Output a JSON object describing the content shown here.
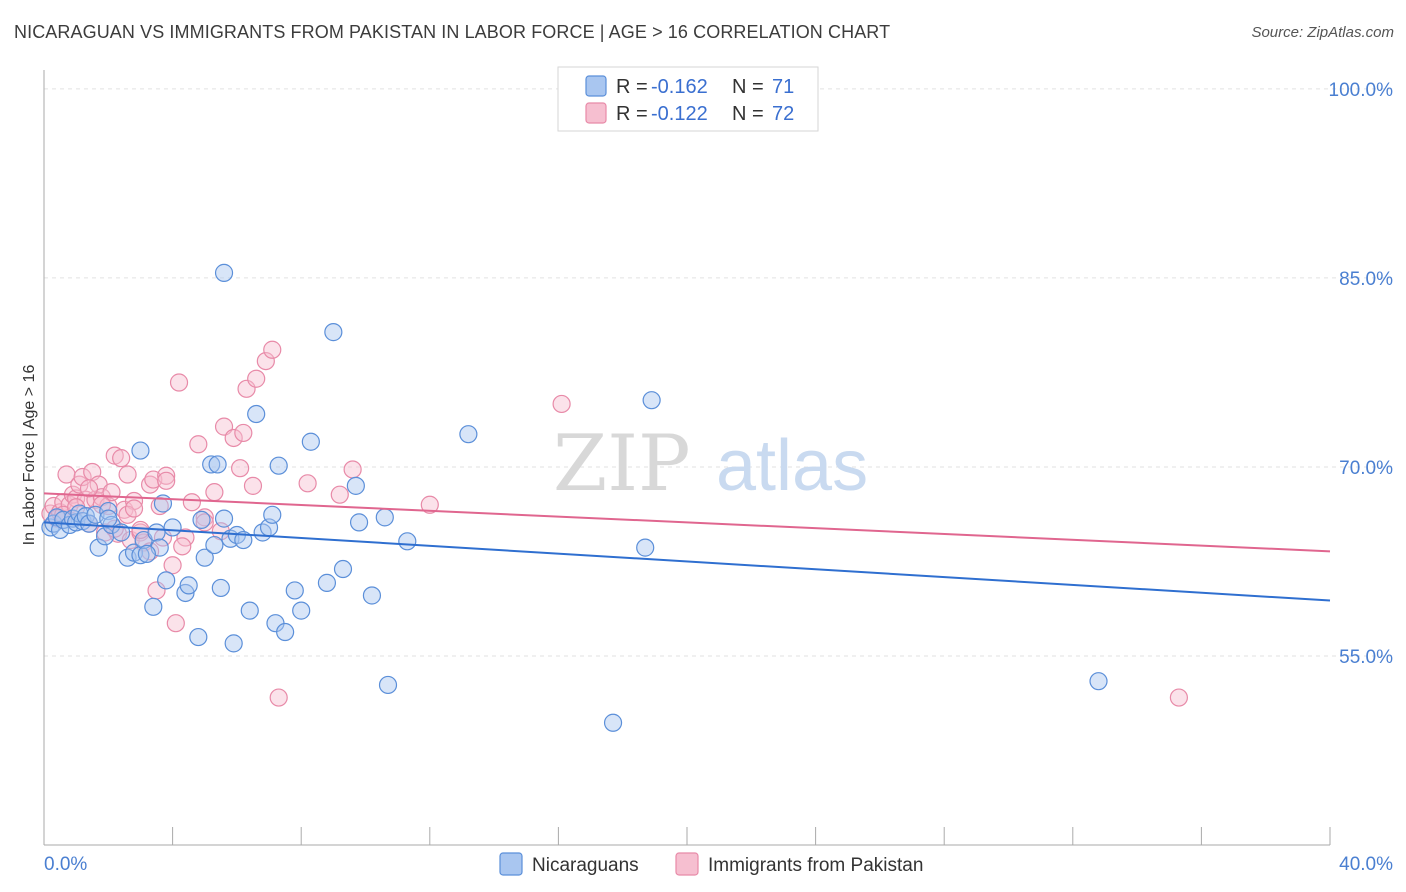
{
  "title": "NICARAGUAN VS IMMIGRANTS FROM PAKISTAN IN LABOR FORCE | AGE > 16 CORRELATION CHART",
  "source": "Source: ZipAtlas.com",
  "watermark": {
    "zip": "ZIP",
    "atlas": "atlas"
  },
  "colors": {
    "blue_fill": "#a9c6f0",
    "blue_stroke": "#5b8fd9",
    "blue_line": "#2f6fd0",
    "pink_fill": "#f6bfd0",
    "pink_stroke": "#e88aa8",
    "pink_line": "#e0668f",
    "tick_text": "#4a7fd1",
    "grid": "#e2e2e2"
  },
  "legend": {
    "rows": [
      {
        "r_label": "R = ",
        "r_value": "-0.162",
        "n_label": "N = ",
        "n_value": "71"
      },
      {
        "r_label": "R = ",
        "r_value": "-0.122",
        "n_label": "N = ",
        "n_value": "72"
      }
    ]
  },
  "bottom_legend": [
    "Nicaraguans",
    "Immigrants from Pakistan"
  ],
  "chart_data": {
    "type": "scatter",
    "xlabel": "",
    "ylabel": "In Labor Force | Age > 16",
    "xlim": [
      0,
      40
    ],
    "ylim": [
      40,
      101.5
    ],
    "x_tick_labels": [
      "0.0%",
      "40.0%"
    ],
    "y_ticks": [
      55,
      70,
      85,
      100
    ],
    "y_tick_labels": [
      "55.0%",
      "70.0%",
      "85.0%",
      "100.0%"
    ],
    "series": [
      {
        "name": "Nicaraguans",
        "r": -0.162,
        "n": 71,
        "trend": {
          "x": [
            0,
            40
          ],
          "y": [
            65.6,
            59.4
          ]
        },
        "points": [
          [
            0.2,
            65.2
          ],
          [
            0.3,
            65.5
          ],
          [
            0.4,
            66.0
          ],
          [
            0.5,
            65.0
          ],
          [
            0.6,
            65.8
          ],
          [
            0.8,
            65.4
          ],
          [
            0.9,
            65.9
          ],
          [
            1.0,
            65.6
          ],
          [
            1.1,
            66.3
          ],
          [
            1.2,
            65.7
          ],
          [
            1.3,
            66.1
          ],
          [
            1.4,
            65.5
          ],
          [
            1.6,
            66.2
          ],
          [
            1.7,
            63.6
          ],
          [
            1.9,
            64.5
          ],
          [
            2.0,
            66.5
          ],
          [
            2.1,
            65.4
          ],
          [
            2.4,
            64.8
          ],
          [
            2.6,
            62.8
          ],
          [
            2.8,
            63.2
          ],
          [
            3.0,
            63.0
          ],
          [
            3.1,
            64.2
          ],
          [
            3.4,
            58.9
          ],
          [
            3.5,
            64.8
          ],
          [
            3.6,
            63.6
          ],
          [
            3.7,
            67.1
          ],
          [
            3.8,
            61.0
          ],
          [
            4.0,
            65.2
          ],
          [
            4.4,
            60.0
          ],
          [
            4.5,
            60.6
          ],
          [
            4.8,
            56.5
          ],
          [
            4.9,
            65.8
          ],
          [
            5.0,
            62.8
          ],
          [
            5.2,
            70.2
          ],
          [
            5.3,
            63.8
          ],
          [
            5.5,
            60.4
          ],
          [
            5.6,
            65.9
          ],
          [
            5.8,
            64.3
          ],
          [
            5.9,
            56.0
          ],
          [
            6.0,
            64.6
          ],
          [
            6.2,
            64.2
          ],
          [
            6.4,
            58.6
          ],
          [
            6.6,
            74.2
          ],
          [
            6.8,
            64.8
          ],
          [
            7.0,
            65.2
          ],
          [
            7.1,
            66.2
          ],
          [
            7.2,
            57.6
          ],
          [
            7.3,
            70.1
          ],
          [
            7.5,
            56.9
          ],
          [
            7.8,
            60.2
          ],
          [
            8.0,
            58.6
          ],
          [
            8.3,
            72.0
          ],
          [
            8.8,
            60.8
          ],
          [
            9.0,
            80.7
          ],
          [
            9.3,
            61.9
          ],
          [
            9.7,
            68.5
          ],
          [
            9.8,
            65.6
          ],
          [
            10.2,
            59.8
          ],
          [
            10.6,
            66.0
          ],
          [
            10.7,
            52.7
          ],
          [
            11.3,
            64.1
          ],
          [
            13.2,
            72.6
          ],
          [
            17.7,
            49.7
          ],
          [
            18.7,
            63.6
          ],
          [
            18.9,
            75.3
          ],
          [
            32.8,
            53.0
          ],
          [
            2.0,
            65.9
          ],
          [
            3.0,
            71.3
          ],
          [
            5.4,
            70.2
          ],
          [
            5.6,
            85.4
          ],
          [
            3.2,
            63.1
          ]
        ]
      },
      {
        "name": "Immigrants from Pakistan",
        "r": -0.122,
        "n": 72,
        "trend": {
          "x": [
            0,
            40
          ],
          "y": [
            67.9,
            63.3
          ]
        },
        "points": [
          [
            0.2,
            66.3
          ],
          [
            0.3,
            66.9
          ],
          [
            0.4,
            65.9
          ],
          [
            0.5,
            66.4
          ],
          [
            0.6,
            67.2
          ],
          [
            0.7,
            69.4
          ],
          [
            0.8,
            67.0
          ],
          [
            0.9,
            67.8
          ],
          [
            1.0,
            67.5
          ],
          [
            1.1,
            68.6
          ],
          [
            1.2,
            69.2
          ],
          [
            1.3,
            67.4
          ],
          [
            1.4,
            65.5
          ],
          [
            1.5,
            69.6
          ],
          [
            1.6,
            67.4
          ],
          [
            1.7,
            68.6
          ],
          [
            1.8,
            67.6
          ],
          [
            1.9,
            64.8
          ],
          [
            2.0,
            66.9
          ],
          [
            2.1,
            68.0
          ],
          [
            2.2,
            70.9
          ],
          [
            2.3,
            64.7
          ],
          [
            2.4,
            70.7
          ],
          [
            2.5,
            66.6
          ],
          [
            2.6,
            69.4
          ],
          [
            2.7,
            64.2
          ],
          [
            2.8,
            67.3
          ],
          [
            3.0,
            64.8
          ],
          [
            3.1,
            64.0
          ],
          [
            3.3,
            68.6
          ],
          [
            3.4,
            69.0
          ],
          [
            3.5,
            60.2
          ],
          [
            3.6,
            66.9
          ],
          [
            3.7,
            64.4
          ],
          [
            3.8,
            69.3
          ],
          [
            4.0,
            62.2
          ],
          [
            4.1,
            57.6
          ],
          [
            4.2,
            76.7
          ],
          [
            4.4,
            64.4
          ],
          [
            4.6,
            67.2
          ],
          [
            4.8,
            71.8
          ],
          [
            5.0,
            66.0
          ],
          [
            5.3,
            68.0
          ],
          [
            5.6,
            73.2
          ],
          [
            5.9,
            72.3
          ],
          [
            6.1,
            69.9
          ],
          [
            6.2,
            72.7
          ],
          [
            6.3,
            76.2
          ],
          [
            6.5,
            68.5
          ],
          [
            6.6,
            77.0
          ],
          [
            6.9,
            78.4
          ],
          [
            7.1,
            79.3
          ],
          [
            7.3,
            51.7
          ],
          [
            9.2,
            67.8
          ],
          [
            9.6,
            69.8
          ],
          [
            12.0,
            67.0
          ],
          [
            16.1,
            75.0
          ],
          [
            35.3,
            51.7
          ],
          [
            0.6,
            66.2
          ],
          [
            1.0,
            66.8
          ],
          [
            1.4,
            68.3
          ],
          [
            1.8,
            67.0
          ],
          [
            2.2,
            65.1
          ],
          [
            2.6,
            66.2
          ],
          [
            3.0,
            65.0
          ],
          [
            3.3,
            63.3
          ],
          [
            3.8,
            68.9
          ],
          [
            4.3,
            63.7
          ],
          [
            5.0,
            65.6
          ],
          [
            5.5,
            64.9
          ],
          [
            8.2,
            68.7
          ],
          [
            2.8,
            66.7
          ]
        ]
      }
    ]
  }
}
